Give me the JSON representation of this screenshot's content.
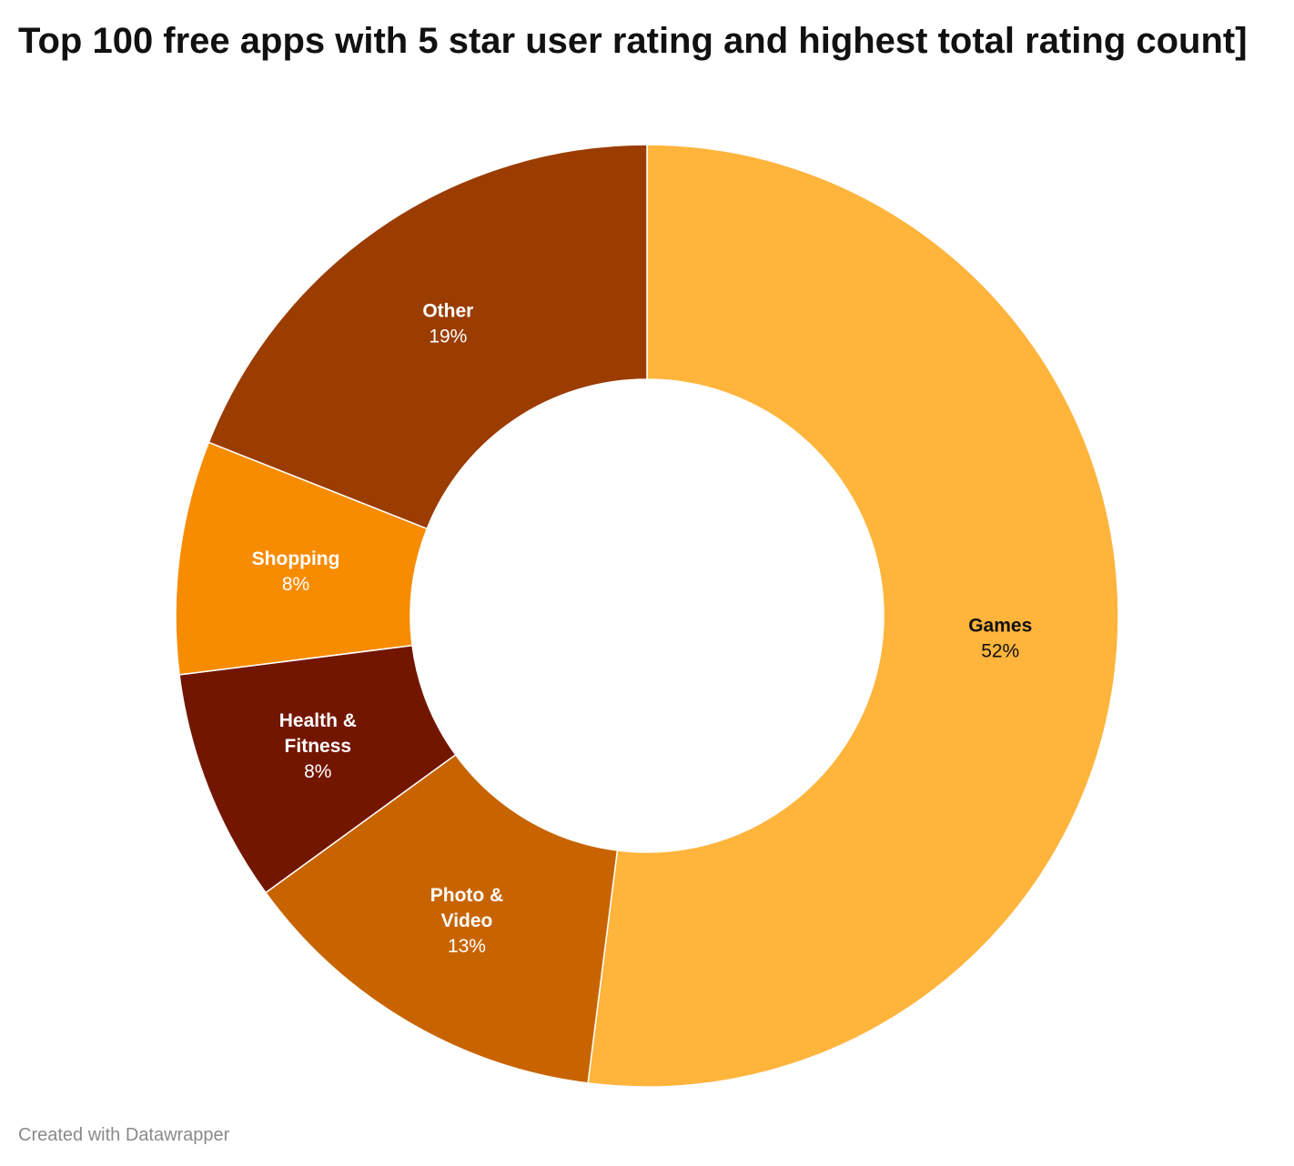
{
  "chart_data": {
    "type": "pie",
    "style": "donut",
    "title": "Top 100 free apps with 5 star user rating and highest total rating count]",
    "categories": [
      "Games",
      "Photo & Video",
      "Health & Fitness",
      "Shopping",
      "Other"
    ],
    "values": [
      52,
      13,
      8,
      8,
      19
    ],
    "value_labels": [
      "52%",
      "13%",
      "8%",
      "8%",
      "19%"
    ],
    "colors": [
      "#ffb43c",
      "#c86400",
      "#731600",
      "#f88c00",
      "#9b3c00"
    ],
    "label_colors": [
      "#111111",
      "#ffffff",
      "#ffffff",
      "#ffffff",
      "#ffffff"
    ],
    "start": "12 o'clock",
    "direction": "clockwise",
    "legend": "none (direct labels)"
  },
  "footer": {
    "credit": "Created with Datawrapper"
  }
}
